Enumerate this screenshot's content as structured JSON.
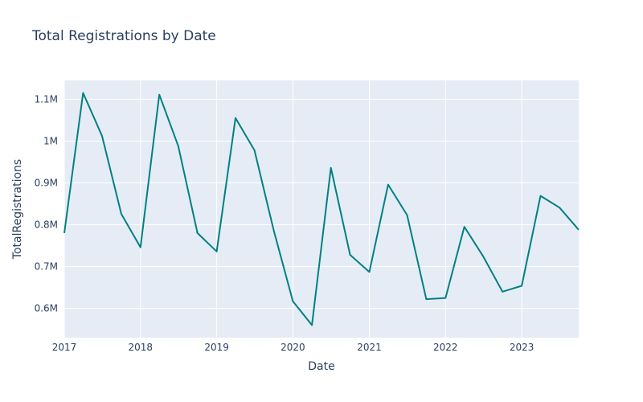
{
  "chart_data": {
    "type": "line",
    "title": "Total Registrations by Date",
    "xlabel": "Date",
    "ylabel": "TotalRegistrations",
    "x": [
      "2017-01-01",
      "2017-04-01",
      "2017-07-01",
      "2017-10-01",
      "2018-01-01",
      "2018-04-01",
      "2018-07-01",
      "2018-10-01",
      "2019-01-01",
      "2019-04-01",
      "2019-07-01",
      "2019-10-01",
      "2020-01-01",
      "2020-04-01",
      "2020-07-01",
      "2020-10-01",
      "2021-01-01",
      "2021-04-01",
      "2021-07-01",
      "2021-10-01",
      "2022-01-01",
      "2022-04-01",
      "2022-07-01",
      "2022-10-01",
      "2023-01-01",
      "2023-04-01",
      "2023-07-01",
      "2023-10-01"
    ],
    "series": [
      {
        "values": [
          780000,
          1115000,
          1012000,
          826000,
          746000,
          1111000,
          988000,
          780000,
          736000,
          1055000,
          978000,
          787000,
          617000,
          560000,
          936000,
          728000,
          687000,
          896000,
          823000,
          622000,
          625000,
          795000,
          724000,
          640000,
          654000,
          869000,
          841000,
          788000
        ]
      }
    ],
    "xlim": [
      "2017-01-01",
      "2023-10-01"
    ],
    "ylim": [
      530000,
      1145000
    ],
    "x_ticks": [
      "2017",
      "2018",
      "2019",
      "2020",
      "2021",
      "2022",
      "2023"
    ],
    "y_ticks": [
      {
        "value": 600000,
        "label": "0.6M"
      },
      {
        "value": 700000,
        "label": "0.7M"
      },
      {
        "value": 800000,
        "label": "0.8M"
      },
      {
        "value": 900000,
        "label": "0.9M"
      },
      {
        "value": 1000000,
        "label": "1M"
      },
      {
        "value": 1100000,
        "label": "1.1M"
      }
    ],
    "grid": true,
    "colors": {
      "line": "#008080",
      "plot_bg": "#e5ecf6",
      "grid": "#ffffff"
    }
  }
}
